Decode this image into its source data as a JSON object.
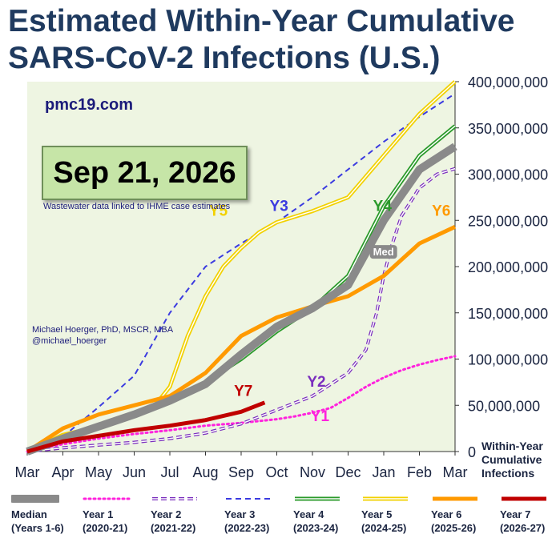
{
  "title_line1": "Estimated Within-Year Cumulative",
  "title_line2": "SARS-CoV-2 Infections (U.S.)",
  "site": "pmc19.com",
  "date_box": "Sep 21, 2026",
  "note": "Wastewater data linked to IHME case estimates",
  "author_line1": "Michael Hoerger, PhD, MSCR, MBA",
  "author_line2": "@michael_hoerger",
  "chart_data": {
    "type": "line",
    "x_unit": "months since Mar 1 of the survey year",
    "x_ticks": [
      "Mar",
      "Apr",
      "May",
      "Jun",
      "Jul",
      "Aug",
      "Sep",
      "Oct",
      "Nov",
      "Dec",
      "Jan",
      "Feb",
      "Mar"
    ],
    "y_ticks": [
      "0",
      "50,000,000",
      "100,000,000",
      "150,000,000",
      "200,000,000",
      "250,000,000",
      "300,000,000",
      "350,000,000",
      "400,000,000"
    ],
    "ylim": [
      0,
      400000000
    ],
    "ylabel": "Within-Year Cumulative Infections",
    "grid": false,
    "colors": {
      "plot_bg": "#eef5e2",
      "median": "#8a8a8a",
      "y1": "#ff22dd",
      "y2": "#7b2fbe",
      "y3": "#3b3be0",
      "y4": "#2a9a2a",
      "y5": "#f2d100",
      "y6": "#ff9a00",
      "y7": "#c00000"
    },
    "series": [
      {
        "key": "y1",
        "name": "Year 1",
        "label": "Y1",
        "x": [
          0,
          1,
          2,
          3,
          4,
          5,
          6,
          7,
          7.5,
          8,
          8.5,
          9,
          9.5,
          10,
          10.5,
          11,
          11.5,
          12
        ],
        "values": [
          0,
          8000000,
          14000000,
          19000000,
          23000000,
          28000000,
          31000000,
          35000000,
          38000000,
          42000000,
          47000000,
          58000000,
          70000000,
          80000000,
          88000000,
          94000000,
          99000000,
          103000000
        ]
      },
      {
        "key": "y2",
        "name": "Year 2",
        "label": "Y2",
        "x": [
          0,
          1,
          2,
          3,
          4,
          5,
          6,
          7,
          8,
          9,
          9.5,
          9.8,
          10,
          10.2,
          10.5,
          11,
          11.5,
          12
        ],
        "values": [
          0,
          4000000,
          7000000,
          10000000,
          14000000,
          20000000,
          30000000,
          45000000,
          60000000,
          85000000,
          110000000,
          150000000,
          190000000,
          220000000,
          255000000,
          285000000,
          300000000,
          306000000
        ]
      },
      {
        "key": "y3",
        "name": "Year 3",
        "label": "Y3",
        "x": [
          0,
          1,
          2,
          3,
          4,
          5,
          6,
          7,
          8,
          9,
          10,
          11,
          12
        ],
        "values": [
          0,
          16000000,
          48000000,
          82000000,
          150000000,
          200000000,
          225000000,
          248000000,
          275000000,
          305000000,
          335000000,
          362000000,
          387000000
        ]
      },
      {
        "key": "y4",
        "name": "Year 4",
        "label": "Y4",
        "x": [
          0,
          1,
          2,
          3,
          4,
          5,
          6,
          7,
          8,
          9,
          10,
          11,
          12
        ],
        "values": [
          0,
          15000000,
          28000000,
          40000000,
          55000000,
          75000000,
          100000000,
          130000000,
          155000000,
          190000000,
          265000000,
          320000000,
          352000000
        ]
      },
      {
        "key": "y5",
        "name": "Year 5",
        "label": "Y5",
        "x": [
          0,
          1,
          2,
          3,
          3.5,
          4,
          4.5,
          5,
          5.5,
          6,
          6.5,
          7,
          8,
          9,
          10,
          11,
          12
        ],
        "values": [
          0,
          18000000,
          27000000,
          38000000,
          46000000,
          70000000,
          125000000,
          168000000,
          200000000,
          220000000,
          237000000,
          248000000,
          260000000,
          275000000,
          320000000,
          365000000,
          400000000
        ]
      },
      {
        "key": "y6",
        "name": "Year 6",
        "label": "Y6",
        "x": [
          0,
          1,
          2,
          3,
          4,
          5,
          6,
          7,
          8,
          9,
          10,
          11,
          12
        ],
        "values": [
          0,
          25000000,
          40000000,
          50000000,
          60000000,
          85000000,
          125000000,
          145000000,
          157000000,
          168000000,
          190000000,
          225000000,
          243000000
        ]
      },
      {
        "key": "median",
        "name": "Median (Years 1-6)",
        "label": "Med",
        "x": [
          0,
          1,
          2,
          3,
          4,
          5,
          6,
          7,
          8,
          9,
          10,
          11,
          12
        ],
        "values": [
          0,
          14000000,
          27000000,
          40000000,
          55000000,
          73000000,
          105000000,
          135000000,
          155000000,
          180000000,
          250000000,
          305000000,
          330000000
        ]
      },
      {
        "key": "y7",
        "name": "Year 7",
        "label": "Y7",
        "x": [
          0,
          1,
          2,
          3,
          4,
          5,
          6,
          6.66
        ],
        "values": [
          0,
          11000000,
          17000000,
          23000000,
          28000000,
          34000000,
          43000000,
          53000000
        ]
      }
    ]
  },
  "legend": [
    {
      "key": "median",
      "line1": "Median",
      "line2": "(Years 1-6)"
    },
    {
      "key": "y1",
      "line1": "Year 1",
      "line2": "(2020-21)"
    },
    {
      "key": "y2",
      "line1": "Year 2",
      "line2": "(2021-22)"
    },
    {
      "key": "y3",
      "line1": "Year 3",
      "line2": "(2022-23)"
    },
    {
      "key": "y4",
      "line1": "Year 4",
      "line2": "(2023-24)"
    },
    {
      "key": "y5",
      "line1": "Year 5",
      "line2": "(2024-25)"
    },
    {
      "key": "y6",
      "line1": "Year 6",
      "line2": "(2025-26)"
    },
    {
      "key": "y7",
      "line1": "Year 7",
      "line2": "(2026-27)"
    }
  ]
}
